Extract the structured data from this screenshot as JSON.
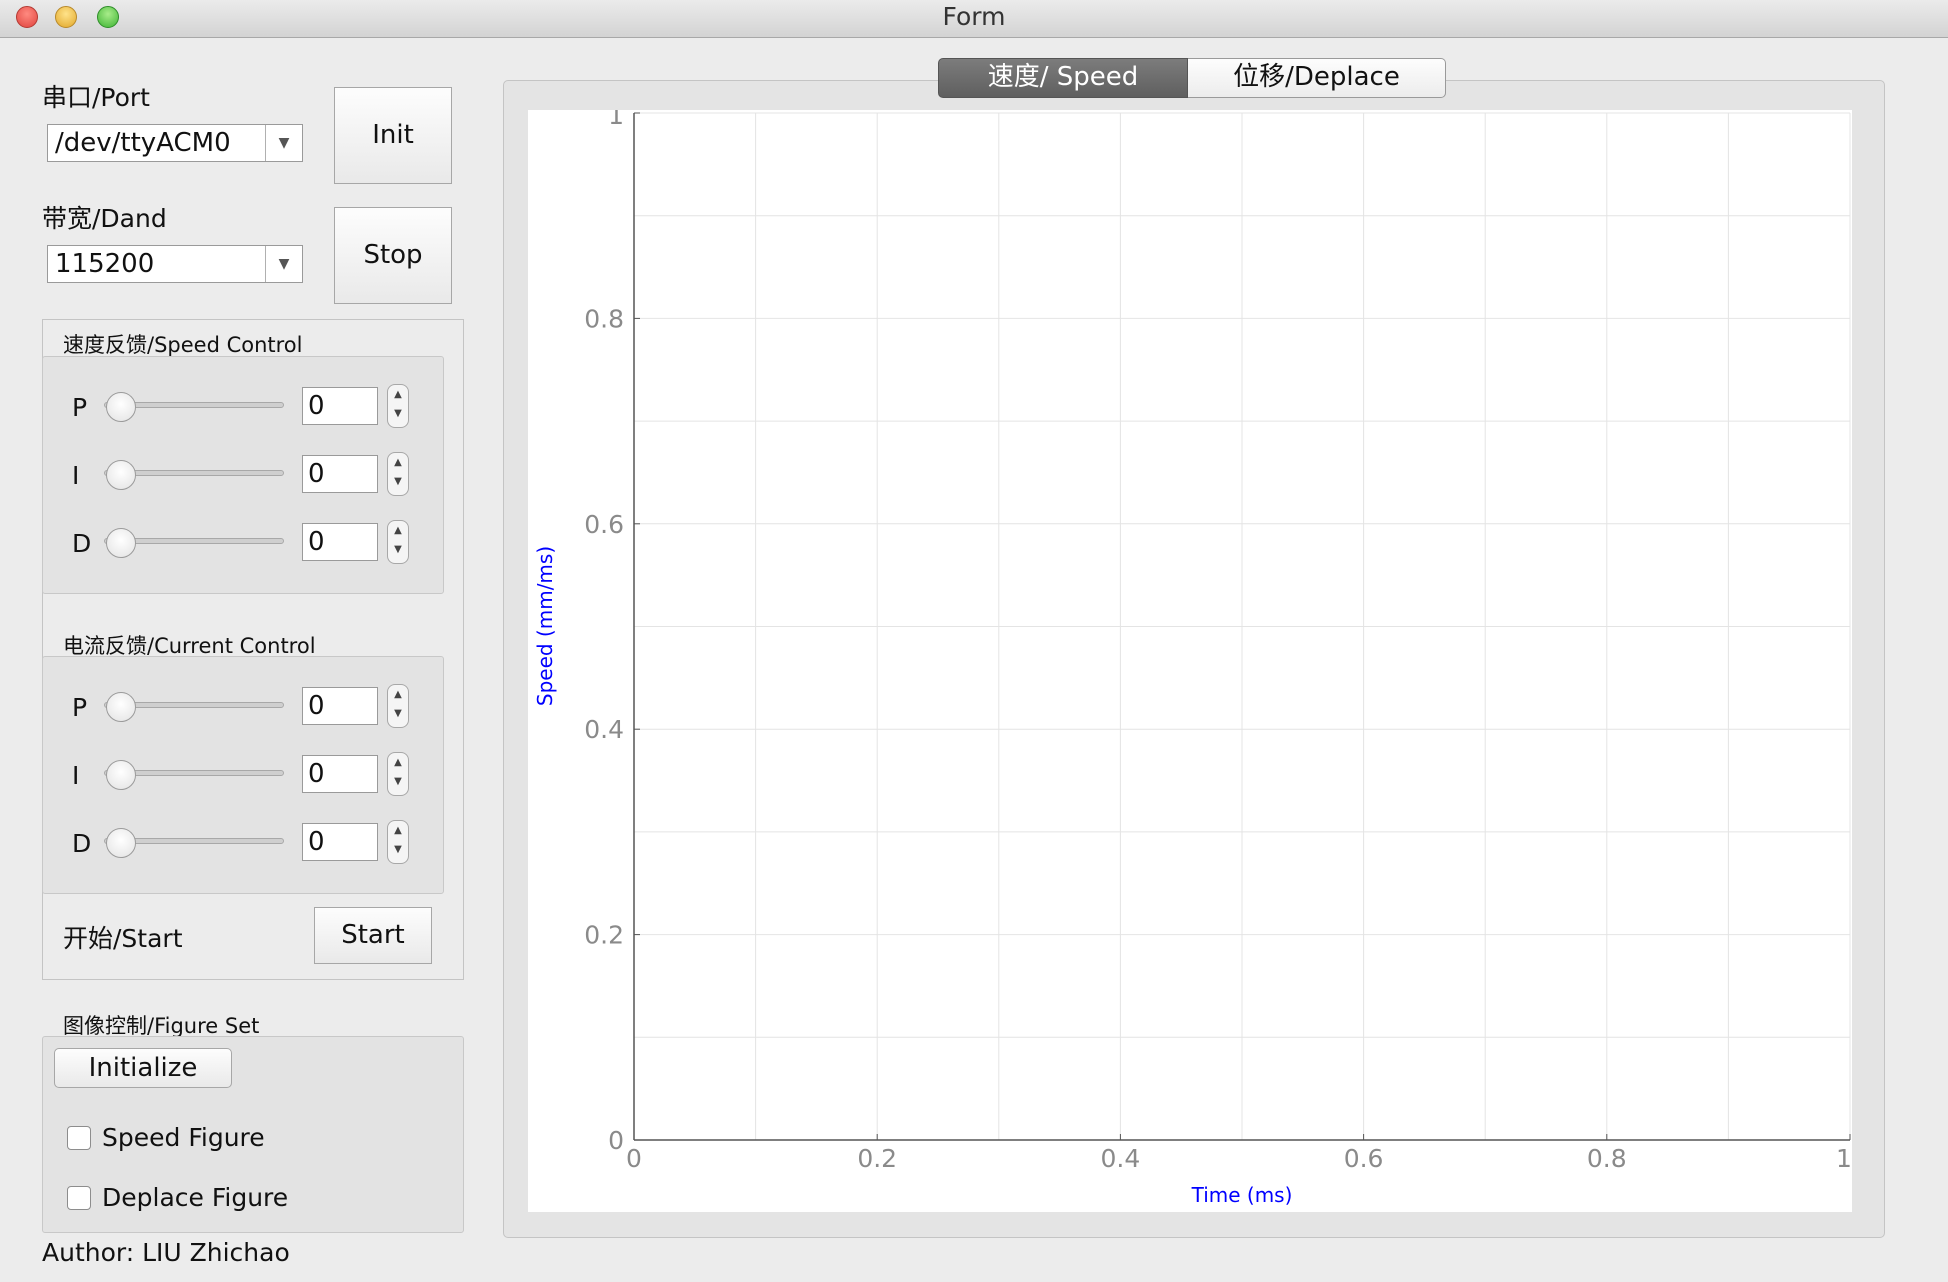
{
  "window": {
    "title": "Form"
  },
  "port": {
    "label": "串口/Port",
    "value": "/dev/ttyACM0"
  },
  "init_label": "Init",
  "baud": {
    "label": "带宽/Dand",
    "value": "115200"
  },
  "stop_label": "Stop",
  "speed_control": {
    "title": "速度反馈/Speed Control",
    "rows": [
      {
        "label": "P",
        "value": "0",
        "slider": 0
      },
      {
        "label": "I",
        "value": "0",
        "slider": 0
      },
      {
        "label": "D",
        "value": "0",
        "slider": 0
      }
    ]
  },
  "current_control": {
    "title": "电流反馈/Current Control",
    "rows": [
      {
        "label": "P",
        "value": "0",
        "slider": 0
      },
      {
        "label": "I",
        "value": "0",
        "slider": 0
      },
      {
        "label": "D",
        "value": "0",
        "slider": 0
      }
    ]
  },
  "start": {
    "label": "开始/Start",
    "button": "Start"
  },
  "figure_set": {
    "title": "图像控制/Figure Set",
    "initialize": "Initialize",
    "speed_figure": {
      "label": "Speed Figure",
      "checked": false
    },
    "deplace_figure": {
      "label": "Deplace Figure",
      "checked": false
    }
  },
  "author": "Author: LIU Zhichao",
  "tabs": [
    {
      "label": "速度/  Speed",
      "active": true
    },
    {
      "label": "位移/Deplace",
      "active": false
    }
  ],
  "colors": {
    "axis_label": "#0000ff",
    "tab_active": "#6d6d6d"
  },
  "chart_data": {
    "type": "line",
    "xlabel": "Time (ms)",
    "ylabel": "Speed (mm/ms)",
    "xlim": [
      0,
      1
    ],
    "ylim": [
      0,
      1
    ],
    "x_ticks": [
      "0",
      "0.2",
      "0.4",
      "0.6",
      "0.8",
      "1"
    ],
    "y_ticks": [
      "0",
      "0.2",
      "0.4",
      "0.6",
      "0.8",
      "1"
    ],
    "grid": true,
    "series": []
  }
}
